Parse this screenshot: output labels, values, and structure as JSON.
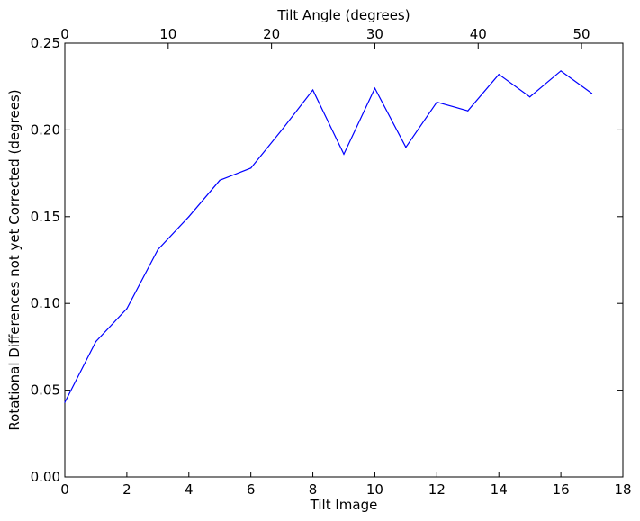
{
  "chart_data": {
    "type": "line",
    "title": "",
    "xlabel": "Tilt Image",
    "ylabel": "Rotational Differences not yet Corrected (degrees)",
    "x2label": "Tilt Angle (degrees)",
    "xlim": [
      0,
      18
    ],
    "ylim": [
      0.0,
      0.25
    ],
    "x2lim": [
      0,
      54
    ],
    "xticks": [
      0,
      2,
      4,
      6,
      8,
      10,
      12,
      14,
      16,
      18
    ],
    "xtick_labels": [
      "0",
      "2",
      "4",
      "6",
      "8",
      "10",
      "12",
      "14",
      "16",
      "18"
    ],
    "yticks": [
      0.0,
      0.05,
      0.1,
      0.15,
      0.2,
      0.25
    ],
    "ytick_labels": [
      "0.00",
      "0.05",
      "0.10",
      "0.15",
      "0.20",
      "0.25"
    ],
    "x2ticks": [
      0,
      10,
      20,
      30,
      40,
      50
    ],
    "x2tick_labels": [
      "0",
      "10",
      "20",
      "30",
      "40",
      "50"
    ],
    "grid": false,
    "series": [
      {
        "color": "#0000ff",
        "x": [
          0,
          1,
          2,
          3,
          4,
          5,
          6,
          7,
          8,
          9,
          10,
          11,
          12,
          13,
          14,
          15,
          16,
          17
        ],
        "y": [
          0.043,
          0.078,
          0.097,
          0.131,
          0.15,
          0.171,
          0.178,
          0.2,
          0.223,
          0.186,
          0.224,
          0.19,
          0.216,
          0.211,
          0.232,
          0.219,
          0.234,
          0.221
        ]
      }
    ]
  }
}
